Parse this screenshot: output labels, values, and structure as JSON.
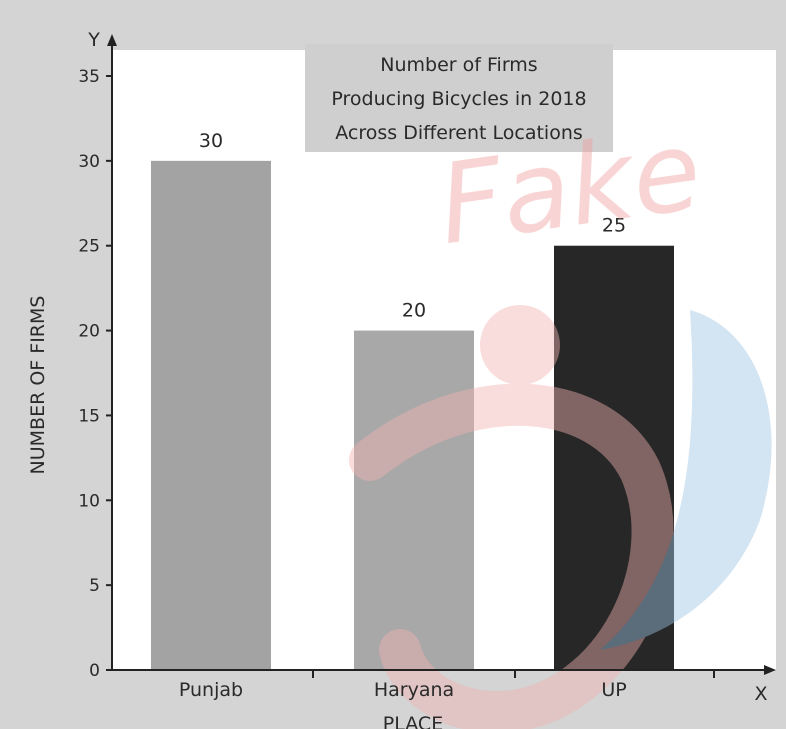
{
  "chart_data": {
    "type": "bar",
    "title": "Number of Firms Producing Bicycles in 2018 Across Different Locations",
    "title_lines": [
      "Number of Firms",
      "Producing Bicycles in 2018",
      "Across Different Locations"
    ],
    "categories": [
      "Punjab",
      "Haryana",
      "UP"
    ],
    "values": [
      30,
      20,
      25
    ],
    "data_labels": [
      "30",
      "20",
      "25"
    ],
    "bar_colors": [
      "#a3a3a3",
      "#a8a8a8",
      "#272727"
    ],
    "xlabel": "PLACE",
    "ylabel": "NUMBER OF FIRMS",
    "x_axis_letter": "X",
    "y_axis_letter": "Y",
    "ylim": [
      0,
      35
    ],
    "yticks": [
      0,
      5,
      10,
      15,
      20,
      25,
      30,
      35
    ],
    "grid": false,
    "legend": "none",
    "watermark_text": "Fake"
  }
}
